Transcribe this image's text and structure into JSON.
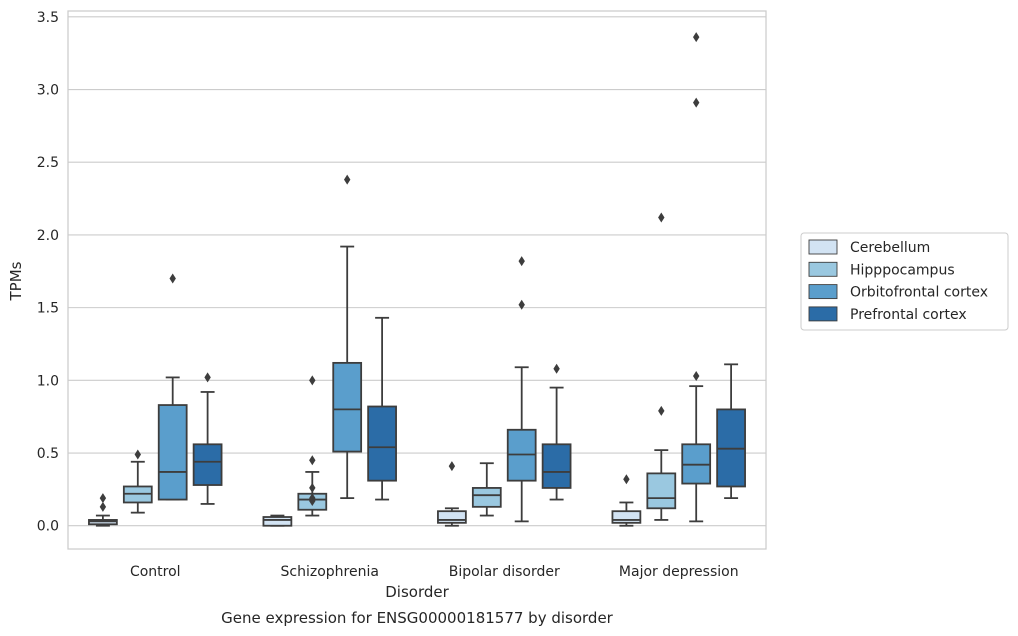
{
  "chart_data": {
    "type": "box",
    "caption": "Gene expression for ENSG00000181577 by disorder",
    "xlabel": "Disorder",
    "ylabel": "TPMs",
    "ylim": [
      -0.16,
      3.54
    ],
    "yticks": [
      "0.0",
      "0.5",
      "1.0",
      "1.5",
      "2.0",
      "2.5",
      "3.0",
      "3.5"
    ],
    "grid": "horizontal",
    "legend_position": "right",
    "categories": [
      "Control",
      "Schizophrenia",
      "Bipolar disorder",
      "Major depression"
    ],
    "series": [
      {
        "name": "Cerebellum",
        "color": "#d2e3f3",
        "boxes": [
          {
            "q1": 0.01,
            "median": 0.03,
            "q3": 0.04,
            "whisker_low": 0.0,
            "whisker_high": 0.07,
            "outliers": [
              0.13,
              0.19
            ]
          },
          {
            "q1": 0.0,
            "median": 0.04,
            "q3": 0.06,
            "whisker_low": 0.0,
            "whisker_high": 0.07,
            "outliers": []
          },
          {
            "q1": 0.02,
            "median": 0.04,
            "q3": 0.1,
            "whisker_low": 0.0,
            "whisker_high": 0.12,
            "outliers": [
              0.41
            ]
          },
          {
            "q1": 0.02,
            "median": 0.04,
            "q3": 0.1,
            "whisker_low": 0.0,
            "whisker_high": 0.16,
            "outliers": [
              0.32
            ]
          }
        ]
      },
      {
        "name": "Hipppocampus",
        "color": "#9ac8e0",
        "boxes": [
          {
            "q1": 0.16,
            "median": 0.22,
            "q3": 0.27,
            "whisker_low": 0.09,
            "whisker_high": 0.44,
            "outliers": [
              0.49
            ]
          },
          {
            "q1": 0.11,
            "median": 0.18,
            "q3": 0.22,
            "whisker_low": 0.07,
            "whisker_high": 0.37,
            "outliers": [
              0.17,
              0.19,
              0.26,
              0.45,
              1.0
            ]
          },
          {
            "q1": 0.13,
            "median": 0.21,
            "q3": 0.26,
            "whisker_low": 0.07,
            "whisker_high": 0.43,
            "outliers": []
          },
          {
            "q1": 0.12,
            "median": 0.19,
            "q3": 0.36,
            "whisker_low": 0.04,
            "whisker_high": 0.52,
            "outliers": [
              0.79,
              2.12
            ]
          }
        ]
      },
      {
        "name": "Orbitofrontal cortex",
        "color": "#5a9ecc",
        "boxes": [
          {
            "q1": 0.18,
            "median": 0.37,
            "q3": 0.83,
            "whisker_low": 0.18,
            "whisker_high": 1.02,
            "outliers": [
              1.7
            ]
          },
          {
            "q1": 0.51,
            "median": 0.8,
            "q3": 1.12,
            "whisker_low": 0.19,
            "whisker_high": 1.92,
            "outliers": [
              2.38
            ]
          },
          {
            "q1": 0.31,
            "median": 0.49,
            "q3": 0.66,
            "whisker_low": 0.03,
            "whisker_high": 1.09,
            "outliers": [
              1.52,
              1.82
            ]
          },
          {
            "q1": 0.29,
            "median": 0.42,
            "q3": 0.56,
            "whisker_low": 0.03,
            "whisker_high": 0.96,
            "outliers": [
              1.03,
              2.91,
              3.36
            ]
          }
        ]
      },
      {
        "name": "Prefrontal cortex",
        "color": "#2b6ca7",
        "boxes": [
          {
            "q1": 0.28,
            "median": 0.44,
            "q3": 0.56,
            "whisker_low": 0.15,
            "whisker_high": 0.92,
            "outliers": [
              1.02
            ]
          },
          {
            "q1": 0.31,
            "median": 0.54,
            "q3": 0.82,
            "whisker_low": 0.18,
            "whisker_high": 1.43,
            "outliers": []
          },
          {
            "q1": 0.26,
            "median": 0.37,
            "q3": 0.56,
            "whisker_low": 0.18,
            "whisker_high": 0.95,
            "outliers": [
              1.08
            ]
          },
          {
            "q1": 0.27,
            "median": 0.53,
            "q3": 0.8,
            "whisker_low": 0.19,
            "whisker_high": 1.11,
            "outliers": []
          }
        ]
      }
    ]
  }
}
